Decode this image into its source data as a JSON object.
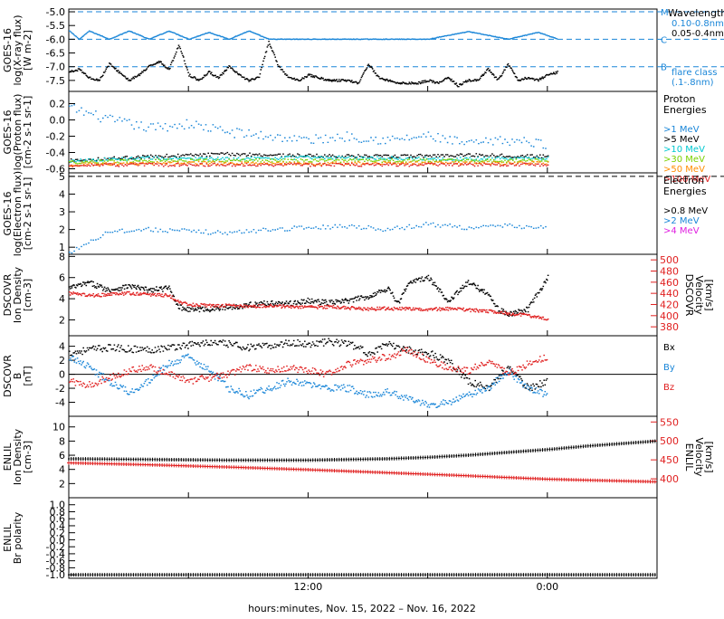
{
  "chart_data": [
    {
      "type": "scatter",
      "panel": "goes-xray",
      "ylabel_lines": [
        "GOES-16",
        "log(X-ray flux)",
        "[W m-2]"
      ],
      "ylim": [
        -7.9,
        -4.9
      ],
      "yticks": [
        -7.5,
        -7.0,
        -6.5,
        -6.0,
        -5.5,
        -5.0
      ],
      "ytick_labels": [
        "-7.5",
        "-7.0",
        "-6.5",
        "-6.0",
        "-5.5",
        "-5.0"
      ],
      "flare_class_lines": [
        {
          "y": -7.0,
          "label": "B"
        },
        {
          "y": -6.0,
          "label": "C"
        },
        {
          "y": -5.0,
          "label": "M"
        }
      ],
      "legend_title": "Wavelength",
      "legend": [
        {
          "name": "0.10-0.8nm",
          "color": "#1a86d8"
        },
        {
          "name": "0.05-0.4nm",
          "color": "#000000"
        }
      ],
      "flare_note": [
        "flare class",
        "(.1-.8nm)"
      ],
      "series": [
        {
          "name": "0.10-0.8nm",
          "color": "#1a86d8",
          "x": [
            0,
            0.5,
            1,
            2,
            3,
            4,
            5,
            6,
            7,
            8,
            9,
            10,
            12,
            14,
            16,
            18,
            20,
            22,
            23.5,
            24.5
          ],
          "y": [
            -5.7,
            -6.0,
            -5.7,
            -6.0,
            -5.7,
            -6.0,
            -5.7,
            -6.0,
            -5.75,
            -6.0,
            -5.7,
            -6.0,
            -6.0,
            -6.0,
            -6.0,
            -6.0,
            -5.72,
            -6.0,
            -5.75,
            -6.0
          ]
        },
        {
          "name": "0.05-0.4nm",
          "color": "#000000",
          "x": [
            0,
            0.5,
            1,
            1.5,
            2,
            2.5,
            3,
            3.5,
            4,
            4.5,
            5,
            5.5,
            6,
            6.5,
            7,
            7.5,
            8,
            8.5,
            9,
            9.5,
            10,
            10.5,
            11,
            11.5,
            12,
            12.5,
            13,
            13.5,
            14,
            14.5,
            15,
            15.5,
            16,
            16.5,
            17,
            17.5,
            18,
            18.5,
            19,
            19.5,
            20,
            20.5,
            21,
            21.5,
            22,
            22.5,
            23,
            23.5,
            24,
            24.5
          ],
          "y": [
            -7.2,
            -7.1,
            -7.4,
            -7.5,
            -6.9,
            -7.2,
            -7.5,
            -7.3,
            -7.0,
            -6.8,
            -7.1,
            -6.2,
            -7.3,
            -7.5,
            -7.2,
            -7.4,
            -7.0,
            -7.3,
            -7.5,
            -7.4,
            -6.1,
            -7.0,
            -7.4,
            -7.5,
            -7.3,
            -7.4,
            -7.5,
            -7.5,
            -7.5,
            -7.6,
            -6.9,
            -7.4,
            -7.5,
            -7.6,
            -7.6,
            -7.6,
            -7.5,
            -7.6,
            -7.4,
            -7.7,
            -7.5,
            -7.5,
            -7.1,
            -7.5,
            -6.9,
            -7.5,
            -7.4,
            -7.5,
            -7.3,
            -7.2
          ]
        }
      ]
    },
    {
      "type": "scatter",
      "panel": "goes-proton",
      "ylabel_lines": [
        "GOES-16",
        "log(Proton flux)",
        "[cm-2 s-1 sr-1]"
      ],
      "ylim": [
        -0.65,
        0.35
      ],
      "yticks": [
        -0.6,
        -0.4,
        -0.2,
        0.0,
        0.2
      ],
      "ytick_labels": [
        "-0.6",
        "-0.4",
        "-0.2",
        "0.0",
        "0.2"
      ],
      "legend_title_lines": [
        "Proton",
        "Energies"
      ],
      "legend": [
        {
          "name": ">1 MeV",
          "color": "#1a86d8"
        },
        {
          "name": ">5 MeV",
          "color": "#000000"
        },
        {
          "name": ">10 MeV",
          "color": "#00c8d0"
        },
        {
          "name": ">30 MeV",
          "color": "#7ad000"
        },
        {
          "name": ">50 MeV",
          "color": "#ff8c00"
        },
        {
          "name": ">100 MeV",
          "color": "#e02020"
        }
      ],
      "series": [
        {
          "name": ">1 MeV",
          "color": "#1a86d8",
          "x": [
            0,
            2,
            4,
            6,
            8,
            10,
            12,
            14,
            16,
            18,
            20,
            22,
            24
          ],
          "y": [
            0.15,
            0.0,
            -0.1,
            -0.05,
            -0.15,
            -0.2,
            -0.25,
            -0.2,
            -0.25,
            -0.2,
            -0.3,
            -0.25,
            -0.3
          ]
        },
        {
          "name": ">5 MeV",
          "color": "#000000",
          "x": [
            0,
            4,
            8,
            12,
            16,
            20,
            24
          ],
          "y": [
            -0.5,
            -0.45,
            -0.42,
            -0.44,
            -0.45,
            -0.43,
            -0.45
          ]
        },
        {
          "name": ">10 MeV",
          "color": "#00c8d0",
          "x": [
            0,
            4,
            8,
            12,
            16,
            20,
            24
          ],
          "y": [
            -0.5,
            -0.47,
            -0.48,
            -0.46,
            -0.47,
            -0.48,
            -0.47
          ]
        },
        {
          "name": ">30 MeV",
          "color": "#7ad000",
          "x": [
            0,
            4,
            8,
            12,
            16,
            20,
            24
          ],
          "y": [
            -0.52,
            -0.5,
            -0.5,
            -0.5,
            -0.5,
            -0.5,
            -0.5
          ]
        },
        {
          "name": ">50 MeV",
          "color": "#ff8c00",
          "x": [
            0,
            4,
            8,
            12,
            16,
            20,
            24
          ],
          "y": [
            -0.55,
            -0.53,
            -0.53,
            -0.54,
            -0.53,
            -0.53,
            -0.53
          ]
        },
        {
          "name": ">100 MeV",
          "color": "#e02020",
          "x": [
            0,
            4,
            8,
            12,
            16,
            20,
            24
          ],
          "y": [
            -0.56,
            -0.55,
            -0.55,
            -0.55,
            -0.55,
            -0.55,
            -0.55
          ]
        }
      ]
    },
    {
      "type": "scatter",
      "panel": "goes-electron",
      "ylabel_lines": [
        "GOES-16",
        "log(Electron flux)",
        "[cm-2 s-1 sr-1]"
      ],
      "ylim": [
        0.6,
        5.2
      ],
      "yticks": [
        1,
        2,
        3,
        4,
        5
      ],
      "ytick_labels": [
        "1",
        "2",
        "3",
        "4",
        "5"
      ],
      "legend_title_lines": [
        "Electron",
        "Energies"
      ],
      "legend": [
        {
          "name": ">0.8 MeV",
          "color": "#000000"
        },
        {
          "name": ">2 MeV",
          "color": "#1a86d8"
        },
        {
          "name": ">4 MeV",
          "color": "#e020e0"
        }
      ],
      "series": [
        {
          "name": ">0.8 MeV",
          "color": "#000000",
          "x": [
            0,
            24.5
          ],
          "y": [
            5.0,
            5.0
          ]
        },
        {
          "name": ">2 MeV",
          "color": "#1a86d8",
          "x": [
            0,
            2,
            4,
            6,
            8,
            10,
            12,
            14,
            16,
            18,
            20,
            22,
            24
          ],
          "y": [
            0.7,
            1.9,
            2.0,
            1.9,
            1.8,
            2.0,
            2.1,
            2.2,
            2.0,
            2.3,
            2.1,
            2.2,
            2.1
          ]
        },
        {
          "name": ">4 MeV",
          "color": "#e020e0",
          "x": [],
          "y": []
        }
      ]
    },
    {
      "type": "scatter",
      "panel": "dscovr-plasma",
      "ylabel_lines": [
        "DSCOVR",
        "Ion Density",
        "[cm-3]"
      ],
      "y2label_lines": [
        "DSCOVR",
        "Velocity",
        "[km/s]"
      ],
      "ylim": [
        0.5,
        8.2
      ],
      "yticks": [
        2,
        4,
        6,
        8
      ],
      "ytick_labels": [
        "2",
        "4",
        "6",
        "8"
      ],
      "y2lim": [
        364,
        510
      ],
      "y2ticks": [
        380,
        400,
        420,
        440,
        460,
        480,
        500
      ],
      "y2tick_labels": [
        "380",
        "400",
        "420",
        "440",
        "460",
        "480",
        "500"
      ],
      "series": [
        {
          "name": "density",
          "color": "#000000",
          "x": [
            0,
            1,
            2,
            3,
            4,
            5,
            5.5,
            6,
            7,
            8,
            9,
            10,
            11,
            12,
            13,
            14,
            15,
            16,
            16.5,
            17,
            18,
            19,
            20,
            21,
            21.5,
            22,
            23,
            24
          ],
          "y": [
            5.0,
            5.5,
            4.8,
            5.2,
            4.8,
            5.0,
            3.2,
            3.0,
            3.0,
            3.2,
            3.4,
            3.6,
            3.5,
            3.8,
            3.6,
            3.8,
            4.2,
            5.0,
            3.5,
            5.5,
            6.0,
            3.8,
            5.5,
            4.5,
            3.0,
            2.5,
            3.0,
            6.0
          ]
        },
        {
          "name": "velocity",
          "color": "#e02020",
          "x": [
            0,
            1,
            2,
            3,
            4,
            5,
            5.5,
            6,
            7,
            8,
            9,
            10,
            11,
            12,
            13,
            14,
            15,
            16,
            17,
            18,
            19,
            20,
            21,
            22,
            23,
            24
          ],
          "y": [
            440,
            436,
            438,
            440,
            438,
            436,
            424,
            420,
            418,
            418,
            416,
            418,
            416,
            415,
            416,
            414,
            412,
            413,
            412,
            411,
            412,
            410,
            408,
            404,
            400,
            394
          ]
        }
      ]
    },
    {
      "type": "scatter",
      "panel": "dscovr-field",
      "ylabel_lines": [
        "DSCOVR",
        "B",
        "[nT]"
      ],
      "ylim": [
        -6,
        5.5
      ],
      "yticks": [
        -4,
        -2,
        0,
        2,
        4
      ],
      "ytick_labels": [
        "-4",
        "-2",
        "0",
        "2",
        "4"
      ],
      "legend": [
        {
          "name": "Bx",
          "color": "#000000"
        },
        {
          "name": "By",
          "color": "#1a86d8"
        },
        {
          "name": "Bz",
          "color": "#e02020"
        }
      ],
      "series": [
        {
          "name": "Bx",
          "color": "#000000",
          "x": [
            0,
            1,
            2,
            3,
            4,
            5,
            6,
            7,
            8,
            9,
            10,
            11,
            12,
            13,
            14,
            15,
            16,
            17,
            18,
            19,
            20,
            21,
            22,
            23,
            24
          ],
          "y": [
            3.0,
            3.5,
            3.8,
            3.6,
            3.5,
            3.8,
            4.2,
            4.5,
            4.3,
            3.8,
            4.0,
            4.5,
            4.3,
            4.6,
            4.4,
            3.0,
            4.2,
            3.5,
            3.0,
            2.0,
            -1.0,
            -2.0,
            1.0,
            -2.0,
            -1.0
          ]
        },
        {
          "name": "By",
          "color": "#1a86d8",
          "x": [
            0,
            1,
            2,
            3,
            4,
            5,
            6,
            7,
            8,
            9,
            10,
            11,
            12,
            13,
            14,
            15,
            16,
            17,
            18,
            19,
            20,
            21,
            22,
            23,
            24
          ],
          "y": [
            2.5,
            1.0,
            -1.0,
            -2.5,
            -1.0,
            1.5,
            2.5,
            0.5,
            -2.0,
            -3.0,
            -2.0,
            -1.0,
            -1.5,
            -2.0,
            -2.0,
            -3.0,
            -2.5,
            -3.5,
            -4.5,
            -4.0,
            -3.0,
            -2.0,
            0.5,
            -2.0,
            -3.0
          ]
        },
        {
          "name": "Bz",
          "color": "#e02020",
          "x": [
            0,
            1,
            2,
            3,
            4,
            5,
            6,
            7,
            8,
            9,
            10,
            11,
            12,
            13,
            14,
            15,
            16,
            17,
            18,
            19,
            20,
            21,
            22,
            23,
            24
          ],
          "y": [
            -1.0,
            -1.5,
            -0.5,
            0.5,
            1.0,
            0.0,
            -1.0,
            -0.5,
            0.0,
            1.0,
            0.5,
            1.0,
            0.5,
            0.0,
            1.5,
            2.0,
            2.5,
            3.5,
            2.0,
            1.0,
            0.5,
            2.0,
            0.0,
            1.5,
            2.5
          ]
        }
      ]
    },
    {
      "type": "line",
      "panel": "enlil-plasma",
      "ylabel_lines": [
        "ENLIL",
        "Ion Density",
        "[cm-3]"
      ],
      "y2label_lines": [
        "ENLIL",
        "Velocity",
        "[km/s]"
      ],
      "ylim": [
        0,
        11.5
      ],
      "yticks": [
        2,
        4,
        6,
        8,
        10
      ],
      "ytick_labels": [
        "2",
        "4",
        "6",
        "8",
        "10"
      ],
      "y2lim": [
        350,
        565
      ],
      "y2ticks": [
        400,
        450,
        500,
        550
      ],
      "y2tick_labels": [
        "400",
        "450",
        "500",
        "550"
      ],
      "series": [
        {
          "name": "density",
          "color": "#000000",
          "x": [
            0,
            4,
            8,
            12,
            14,
            16,
            18,
            20,
            22,
            24,
            26,
            29.5
          ],
          "y": [
            5.5,
            5.4,
            5.3,
            5.3,
            5.4,
            5.5,
            5.7,
            6.0,
            6.4,
            6.8,
            7.3,
            8.0
          ]
        },
        {
          "name": "velocity",
          "color": "#e02020",
          "x": [
            0,
            4,
            8,
            12,
            16,
            20,
            24,
            29.5
          ],
          "y": [
            442,
            437,
            431,
            424,
            416,
            408,
            399,
            392
          ]
        }
      ]
    },
    {
      "type": "line",
      "panel": "enlil-polarity",
      "ylabel_lines": [
        "ENLIL",
        "Br polarity"
      ],
      "ylim": [
        -1.1,
        1.2
      ],
      "yticks": [
        -1.0,
        -0.8,
        -0.6,
        -0.4,
        -0.2,
        0.0,
        0.2,
        0.4,
        0.6,
        0.8,
        1.0
      ],
      "ytick_labels": [
        "-1.0",
        "-0.8",
        "-0.6",
        "-0.4",
        "-0.2",
        "0.0",
        "0.2",
        "0.4",
        "0.6",
        "0.8",
        "1.0"
      ],
      "series": [
        {
          "name": "polarity",
          "color": "#000000",
          "x": [
            0,
            29.5
          ],
          "y": [
            -1.0,
            -1.0
          ]
        }
      ]
    }
  ],
  "x_axis": {
    "ticks": [
      12,
      24
    ],
    "tick_labels": [
      "12:00",
      "0:00"
    ],
    "label": "hours:minutes, Nov. 15, 2022 – Nov. 16, 2022"
  }
}
